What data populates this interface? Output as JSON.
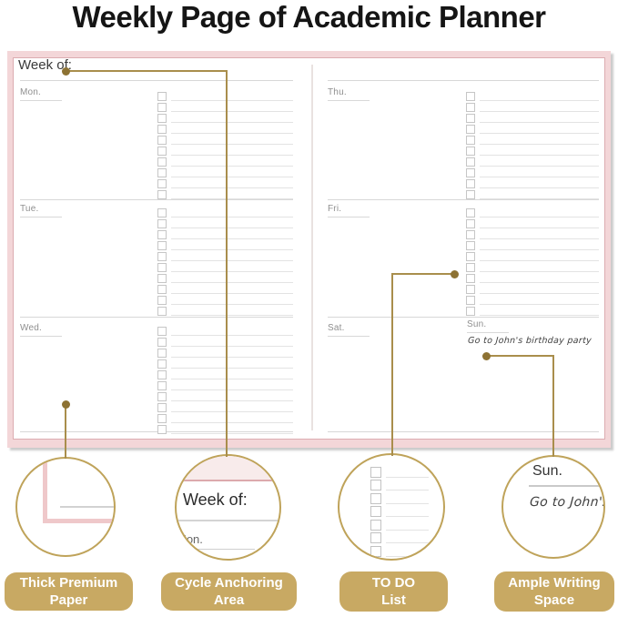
{
  "title": "Weekly Page of Academic Planner",
  "planner": {
    "week_of_label": "Week of:",
    "days": {
      "mon": "Mon.",
      "tue": "Tue.",
      "wed": "Wed.",
      "thu": "Thu.",
      "fri": "Fri.",
      "sat": "Sat.",
      "sun": "Sun."
    },
    "todo_rows": 10,
    "sunday_note": "Go to John's birthday party"
  },
  "callouts": {
    "paper": {
      "line1": "Thick Premium",
      "line2": "Paper"
    },
    "anchor": {
      "line1": "Cycle Anchoring",
      "line2": "Area",
      "zoom_week_of": "Week of:",
      "zoom_day": "Mon."
    },
    "todo": {
      "line1": "TO DO",
      "line2": "List",
      "zoom_rows": 7
    },
    "writing": {
      "line1": "Ample Writing",
      "line2": "Space",
      "zoom_day": "Sun.",
      "zoom_note": "Go to John's"
    }
  },
  "colors": {
    "accent_gold": "#a98e4c",
    "anchor_dot": "#8d7233",
    "circle_ring": "#bfa35a",
    "pink_border": "#f3d6d8",
    "pink_edge": "#dcacb0",
    "pill_bg": "#c8a963",
    "pill_text": "#ffffff"
  }
}
